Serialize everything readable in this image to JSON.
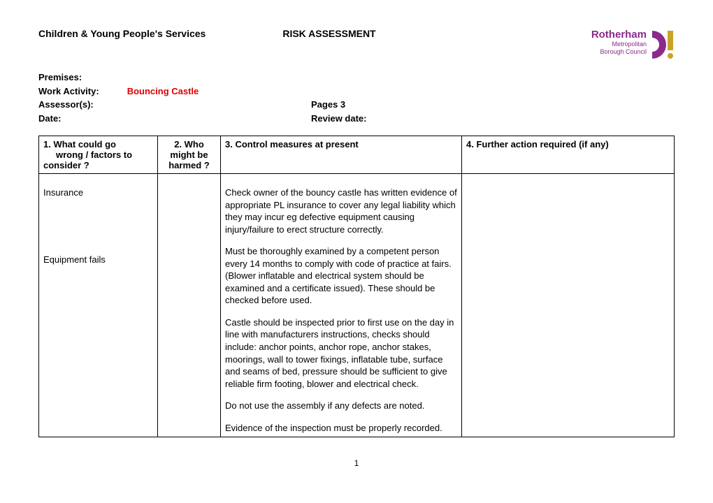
{
  "header": {
    "title_left": "Children & Young People's Services",
    "title_right": "RISK ASSESSMENT",
    "logo": {
      "line1": "Rotherham",
      "line2": "Metropolitan",
      "line3": "Borough Council",
      "text_color": "#8a2a8a",
      "accent_color": "#c9a227"
    }
  },
  "meta": {
    "premises_label": "Premises:",
    "premises_value": "",
    "activity_label": "Work Activity",
    "activity_value": "Bouncing Castle",
    "assessor_label": "Assessor(s):",
    "assessor_value": "",
    "pages_label": "Pages  3",
    "date_label": "Date:",
    "date_value": "",
    "review_label": "Review date:",
    "review_value": ""
  },
  "table": {
    "headers": {
      "c1a": "1. What could go",
      "c1b": "wrong / factors to",
      "c1c": "consider ?",
      "c2a": "2. Who",
      "c2b": "might be",
      "c2c": "harmed ?",
      "c3": "3. Control measures at present",
      "c4": "4. Further action required (if any)"
    },
    "rows": [
      {
        "c1": "Insurance",
        "c2": "",
        "c3": [
          "Check owner of the bouncy castle has written evidence of appropriate PL insurance to cover any legal liability which they may incur eg defective equipment causing injury/failure to erect structure correctly."
        ],
        "c4": ""
      },
      {
        "c1": "Equipment fails",
        "c2": "",
        "c3": [
          "Must be thoroughly examined by a competent person every 14 months to comply with code of practice at fairs. (Blower inflatable and electrical system should be examined and a certificate issued).  These should be checked before used.",
          "Castle should be inspected prior to first use on the day in line with manufacturers instructions, checks should include: anchor points, anchor rope, anchor stakes, moorings, wall to tower fixings, inflatable tube, surface and seams of bed, pressure should be sufficient to give reliable firm footing, blower and electrical check.",
          "Do not use the assembly if any defects are noted.",
          "Evidence of the inspection must be properly recorded."
        ],
        "c4": ""
      }
    ]
  },
  "page_number": "1"
}
